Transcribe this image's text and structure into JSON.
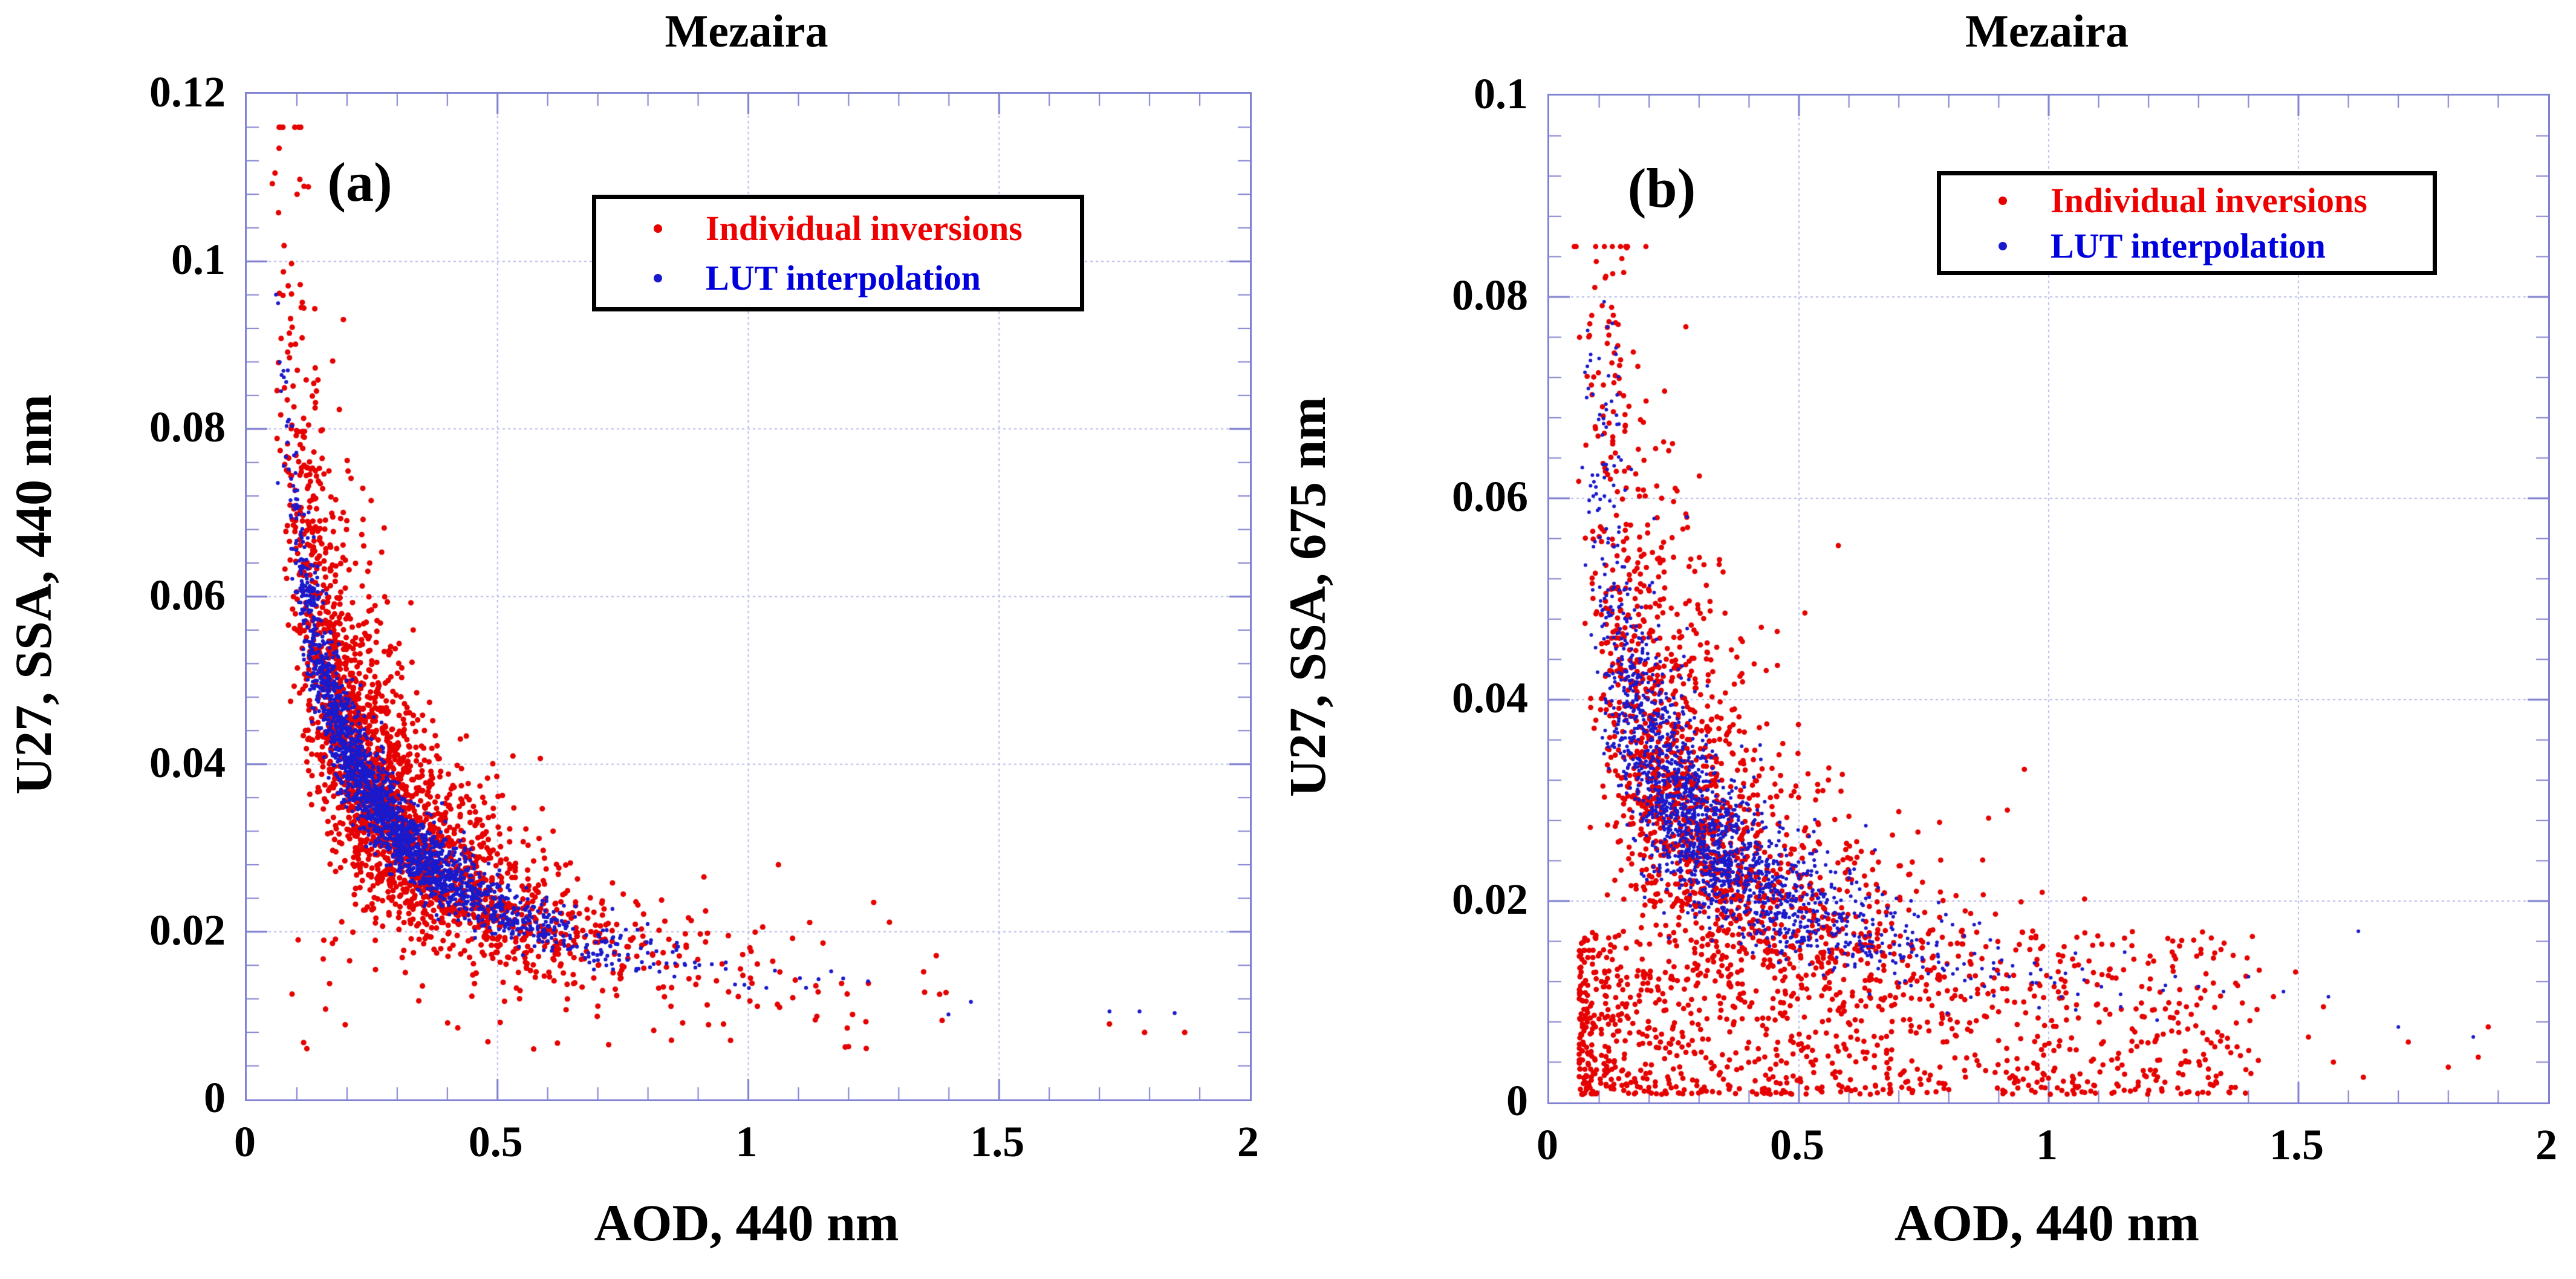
{
  "page": {
    "background": "#ffffff"
  },
  "chart_data": [
    {
      "type": "scatter",
      "panel_label": "(a)",
      "title": "Mezaira",
      "xlabel": "AOD, 440 nm",
      "ylabel": "U27, SSA, 440 nm",
      "xlim": [
        0,
        2
      ],
      "ylim": [
        0,
        0.12
      ],
      "xticks": {
        "values": [
          0,
          0.5,
          1,
          1.5,
          2
        ],
        "labels": [
          "0",
          "0.5",
          "1",
          "1.5",
          "2"
        ],
        "minor_step": 0.1
      },
      "yticks": {
        "values": [
          0,
          0.02,
          0.04,
          0.06,
          0.08,
          0.1,
          0.12
        ],
        "labels": [
          "0",
          "0.02",
          "0.04",
          "0.06",
          "0.08",
          "0.1",
          "0.12"
        ],
        "minor_step": 0.004
      },
      "grid": {
        "color": "#b6baec",
        "dash": [
          4,
          5
        ]
      },
      "frame_color": "#8282d4",
      "tick_color": "#7d7dcf",
      "legend": {
        "position": "upper-center",
        "items": [
          {
            "label": "Individual inversions",
            "color": "#ee0000",
            "marker_color": "#e60000"
          },
          {
            "label": "LUT interpolation",
            "color": "#0000dd",
            "marker_color": "#1a1acc"
          }
        ]
      },
      "series": [
        {
          "name": "Individual inversions",
          "color": "#e60000",
          "marker_radius": 4.6,
          "seed": 101,
          "trend_description": "y ~ 0.0148 * x^-0.68, wide scatter, x mostly 0.05-1.5",
          "components": [
            {
              "kind": "power_cloud",
              "n": 2300,
              "x_log_mean": -1.27,
              "x_log_sd": 0.55,
              "x_min": 0.05,
              "x_max": 1.5,
              "A": 0.0148,
              "b": 0.68,
              "y_log_noise": 0.22,
              "y_min": 0.005,
              "y_max": 0.116
            },
            {
              "kind": "box_cloud",
              "n": 70,
              "x_min": 0.09,
              "x_max": 1.4,
              "x_pow": 1.3,
              "y_min": 0.006,
              "y_max": 0.022,
              "y_pow": 1.2
            }
          ],
          "extra_points": [
            [
              1.72,
              0.009
            ],
            [
              1.79,
              0.008
            ],
            [
              1.87,
              0.008
            ],
            [
              1.25,
              0.0235
            ],
            [
              1.06,
              0.028
            ]
          ]
        },
        {
          "name": "LUT interpolation",
          "color": "#1a1acc",
          "marker_radius": 3.2,
          "seed": 202,
          "trend_description": "y ~ 0.0145 * x^-0.66, tight band along trend",
          "components": [
            {
              "kind": "power_cloud",
              "n": 2100,
              "x_log_mean": -1.3,
              "x_log_sd": 0.5,
              "x_min": 0.05,
              "x_max": 1.48,
              "A": 0.0145,
              "b": 0.66,
              "y_log_noise": 0.08,
              "y_min": 0.006,
              "y_max": 0.1
            }
          ],
          "extra_points": [
            [
              1.72,
              0.0105
            ],
            [
              1.78,
              0.0105
            ],
            [
              1.85,
              0.0103
            ]
          ]
        }
      ]
    },
    {
      "type": "scatter",
      "panel_label": "(b)",
      "title": "Mezaira",
      "xlabel": "AOD, 440 nm",
      "ylabel": "U27, SSA, 675 nm",
      "xlim": [
        0,
        2
      ],
      "ylim": [
        0,
        0.1
      ],
      "xticks": {
        "values": [
          0,
          0.5,
          1,
          1.5,
          2
        ],
        "labels": [
          "0",
          "0.5",
          "1",
          "1.5",
          "2"
        ],
        "minor_step": 0.1
      },
      "yticks": {
        "values": [
          0,
          0.02,
          0.04,
          0.06,
          0.08,
          0.1
        ],
        "labels": [
          "0",
          "0.02",
          "0.04",
          "0.06",
          "0.08",
          "0.1"
        ],
        "minor_step": 0.004
      },
      "grid": {
        "color": "#b6baec",
        "dash": [
          4,
          5
        ]
      },
      "frame_color": "#8282d4",
      "tick_color": "#7d7dcf",
      "legend": {
        "position": "upper-right",
        "items": [
          {
            "label": "Individual inversions",
            "color": "#ee0000",
            "marker_color": "#e60000"
          },
          {
            "label": "LUT interpolation",
            "color": "#0000dd",
            "marker_color": "#1a1acc"
          }
        ]
      },
      "series": [
        {
          "name": "Individual inversions",
          "color": "#e60000",
          "marker_radius": 4.4,
          "seed": 303,
          "trend_description": "y ~ 0.0135 * x^-0.60 with very wide scatter plus dense low cloud near y 0-0.017",
          "components": [
            {
              "kind": "power_cloud",
              "n": 1500,
              "x_log_mean": -1.2,
              "x_log_sd": 0.52,
              "x_min": 0.05,
              "x_max": 1.5,
              "A": 0.0135,
              "b": 0.6,
              "y_log_noise": 0.32,
              "y_min": 0.001,
              "y_max": 0.085
            },
            {
              "kind": "box_cloud",
              "n": 1050,
              "x_min": 0.06,
              "x_max": 1.42,
              "x_pow": 1.6,
              "y_min": 0.0008,
              "y_max": 0.017,
              "y_pow": 1.4
            },
            {
              "kind": "box_cloud",
              "n": 55,
              "x_min": 0.07,
              "x_max": 0.16,
              "y_min": 0.05,
              "y_max": 0.085
            }
          ],
          "extra_points": [
            [
              1.52,
              0.0065
            ],
            [
              1.57,
              0.004
            ],
            [
              1.63,
              0.0025
            ],
            [
              1.72,
              0.006
            ],
            [
              1.8,
              0.0035
            ],
            [
              1.86,
              0.0045
            ],
            [
              1.45,
              0.0105
            ],
            [
              1.55,
              0.0095
            ],
            [
              1.88,
              0.0075
            ]
          ]
        },
        {
          "name": "LUT interpolation",
          "color": "#1a1acc",
          "marker_radius": 3.0,
          "seed": 404,
          "trend_description": "y ~ 0.0128 * x^-0.62, moderately tight band",
          "components": [
            {
              "kind": "power_cloud",
              "n": 1750,
              "x_log_mean": -1.2,
              "x_log_sd": 0.5,
              "x_min": 0.06,
              "x_max": 1.38,
              "A": 0.0128,
              "b": 0.62,
              "y_log_noise": 0.17,
              "y_min": 0.002,
              "y_max": 0.082
            },
            {
              "kind": "box_cloud",
              "n": 30,
              "x_min": 0.07,
              "x_max": 0.14,
              "y_min": 0.055,
              "y_max": 0.08
            }
          ],
          "extra_points": [
            [
              1.4,
              0.0125
            ],
            [
              1.47,
              0.011
            ],
            [
              1.56,
              0.0105
            ],
            [
              1.62,
              0.017
            ],
            [
              1.7,
              0.0075
            ],
            [
              1.85,
              0.0065
            ],
            [
              1.3,
              0.0115
            ],
            [
              1.35,
              0.011
            ]
          ]
        }
      ]
    }
  ]
}
